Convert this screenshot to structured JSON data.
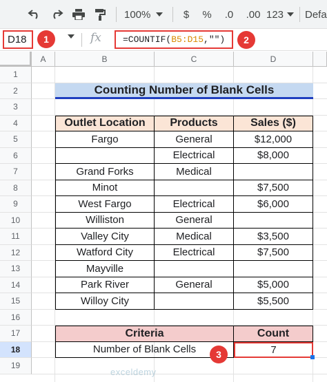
{
  "toolbar": {
    "undo_icon": "undo-icon",
    "redo_icon": "redo-icon",
    "print_icon": "print-icon",
    "paint_format_icon": "paint-format-icon",
    "zoom": "100%",
    "currency": "$",
    "percent": "%",
    "decrease_decimal": ".0",
    "increase_decimal": ".00",
    "more_formats": "123",
    "font": "Defa"
  },
  "formula_bar": {
    "name_box": "D18",
    "fx": "fx",
    "formula_prefix": "=COUNTIF(",
    "formula_range": "B5:D15",
    "formula_suffix": ",\"\")"
  },
  "badges": [
    "1",
    "2",
    "3"
  ],
  "columns": [
    "A",
    "B",
    "C",
    "D"
  ],
  "rows": [
    "1",
    "2",
    "3",
    "4",
    "5",
    "6",
    "7",
    "8",
    "9",
    "10",
    "11",
    "12",
    "13",
    "14",
    "15",
    "16",
    "17",
    "18",
    "19"
  ],
  "sheet": {
    "title": "Counting Number of Blank Cells",
    "headers": [
      "Outlet Location",
      "Products",
      "Sales ($)"
    ],
    "data": [
      [
        "Fargo",
        "General",
        "$12,000"
      ],
      [
        "",
        "Electrical",
        "$8,000"
      ],
      [
        "Grand Forks",
        "Medical",
        ""
      ],
      [
        "Minot",
        "",
        "$7,500"
      ],
      [
        "West Fargo",
        "Electrical",
        "$6,000"
      ],
      [
        "Williston",
        "General",
        ""
      ],
      [
        "Valley City",
        "Medical",
        "$3,500"
      ],
      [
        "Watford City",
        "Electrical",
        "$7,500"
      ],
      [
        "Mayville",
        "",
        ""
      ],
      [
        "Park River",
        "General",
        "$5,000"
      ],
      [
        "Willoy City",
        "",
        "$5,500"
      ]
    ],
    "criteria_header": "Criteria",
    "count_header": "Count",
    "criteria_label": "Number of Blank Cells",
    "count_value": "7"
  },
  "watermark": "exceldemy",
  "colors": {
    "highlight_red": "#e53935",
    "title_bg": "#c5d9f1",
    "header_bg": "#fbe5d6",
    "criteria_bg": "#f4cccc",
    "range_color": "#d98a00"
  }
}
